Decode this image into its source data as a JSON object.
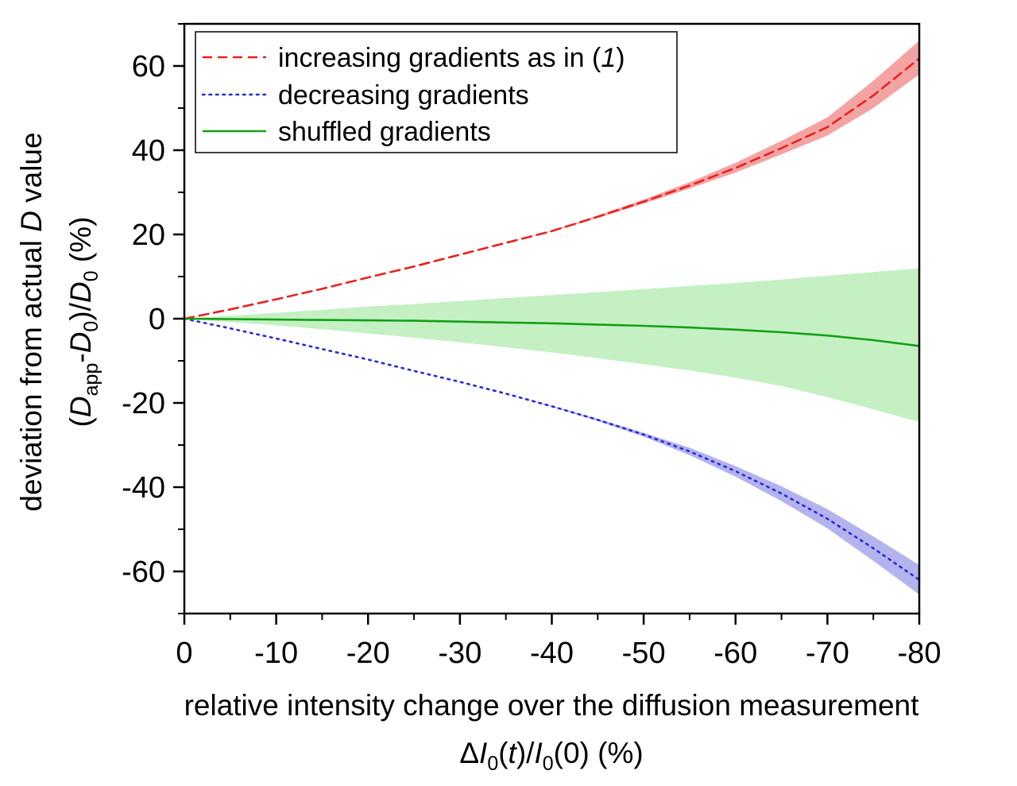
{
  "chart_data": {
    "type": "line",
    "xlabel_line1": "relative intensity change over the diffusion measurement",
    "xlabel_line2": {
      "delta": "Δ",
      "I1": "I",
      "sub1": "0",
      "open1": "(",
      "t": "t",
      "close1": ")/",
      "I2": "I",
      "sub2": "0",
      "rest": "(0) (%)"
    },
    "ylabel_line1": {
      "prefix": "deviation from actual ",
      "D": "D",
      "suffix": " value"
    },
    "ylabel_line2": {
      "open": "(",
      "D1": "D",
      "sub1": "app",
      "dash": "-",
      "D2": "D",
      "sub2": "0",
      "close": ")/",
      "D3": "D",
      "sub3": "0",
      "rest": " (%)"
    },
    "xlim": [
      0,
      -80
    ],
    "ylim": [
      -70,
      70
    ],
    "x_major_ticks": [
      0,
      -10,
      -20,
      -30,
      -40,
      -50,
      -60,
      -70,
      -80
    ],
    "x_tick_labels": [
      "0",
      "-10",
      "-20",
      "-30",
      "-40",
      "-50",
      "-60",
      "-70",
      "-80"
    ],
    "x_minor_ticks": [
      -5,
      -15,
      -25,
      -35,
      -45,
      -55,
      -65,
      -75
    ],
    "y_major_ticks": [
      -60,
      -40,
      -20,
      0,
      20,
      40,
      60
    ],
    "y_tick_labels": [
      "-60",
      "-40",
      "-20",
      "0",
      "20",
      "40",
      "60"
    ],
    "y_minor_ticks": [
      -70,
      -50,
      -30,
      -10,
      10,
      30,
      50,
      70
    ],
    "grid": false,
    "legend_position": "top-left",
    "legend": [
      {
        "text": "increasing gradients as in (",
        "italic": "1",
        "close": ")",
        "style": "dashed",
        "color": "#e8211d"
      },
      {
        "text": "decreasing gradients",
        "style": "dotted",
        "color": "#2a2ad6"
      },
      {
        "text": "shuffled gradients",
        "style": "solid",
        "color": "#14a014"
      }
    ],
    "x": [
      0,
      -5,
      -10,
      -15,
      -20,
      -25,
      -30,
      -35,
      -40,
      -45,
      -50,
      -55,
      -60,
      -65,
      -70,
      -75,
      -80
    ],
    "series": [
      {
        "name": "increasing gradients as in (1)",
        "line_style": "dashed",
        "color": "#e8211d",
        "band_color": "#f4a3a3",
        "values": [
          0,
          2.2,
          4.6,
          7.1,
          9.8,
          12.4,
          15.2,
          18.0,
          20.8,
          24.2,
          27.8,
          31.6,
          35.8,
          40.5,
          45.5,
          53.0,
          61.8
        ],
        "band_lower": [
          0,
          2.2,
          4.6,
          7.1,
          9.8,
          12.4,
          15.2,
          18.0,
          20.7,
          23.9,
          27.3,
          30.9,
          34.7,
          39.0,
          43.5,
          50.0,
          58.0
        ],
        "band_upper": [
          0,
          2.2,
          4.6,
          7.1,
          9.8,
          12.4,
          15.2,
          18.0,
          20.9,
          24.5,
          28.3,
          32.4,
          37.0,
          42.2,
          47.8,
          56.5,
          66.0
        ]
      },
      {
        "name": "decreasing gradients",
        "line_style": "dotted",
        "color": "#2a2ad6",
        "band_color": "#b3b3ee",
        "values": [
          0,
          -2.3,
          -4.7,
          -7.2,
          -9.7,
          -12.4,
          -15.0,
          -17.8,
          -20.8,
          -24.0,
          -27.5,
          -31.5,
          -36.2,
          -41.5,
          -47.5,
          -54.5,
          -62.0
        ],
        "band_lower": [
          0,
          -2.3,
          -4.7,
          -7.2,
          -9.7,
          -12.4,
          -15.0,
          -17.8,
          -20.9,
          -24.3,
          -28.0,
          -32.4,
          -37.5,
          -43.3,
          -49.8,
          -57.5,
          -65.5
        ],
        "band_upper": [
          0,
          -2.3,
          -4.7,
          -7.2,
          -9.7,
          -12.4,
          -15.0,
          -17.8,
          -20.7,
          -23.8,
          -27.1,
          -30.6,
          -35.0,
          -39.8,
          -45.2,
          -51.7,
          -58.5
        ]
      },
      {
        "name": "shuffled gradients",
        "line_style": "solid",
        "color": "#14a014",
        "band_color": "#c4f0c4",
        "values": [
          0,
          -0.1,
          -0.2,
          -0.3,
          -0.4,
          -0.5,
          -0.7,
          -0.9,
          -1.1,
          -1.4,
          -1.7,
          -2.1,
          -2.6,
          -3.2,
          -4.0,
          -5.1,
          -6.5
        ],
        "band_lower": [
          0,
          -0.8,
          -1.6,
          -2.5,
          -3.5,
          -4.5,
          -5.6,
          -6.8,
          -8.0,
          -9.4,
          -10.8,
          -12.3,
          -14.0,
          -16.0,
          -18.6,
          -21.5,
          -24.5
        ],
        "band_upper": [
          0,
          0.7,
          1.4,
          2.1,
          2.9,
          3.5,
          4.2,
          4.9,
          5.6,
          6.3,
          7.0,
          7.8,
          8.5,
          9.3,
          10.2,
          11.1,
          12.0
        ]
      }
    ]
  }
}
